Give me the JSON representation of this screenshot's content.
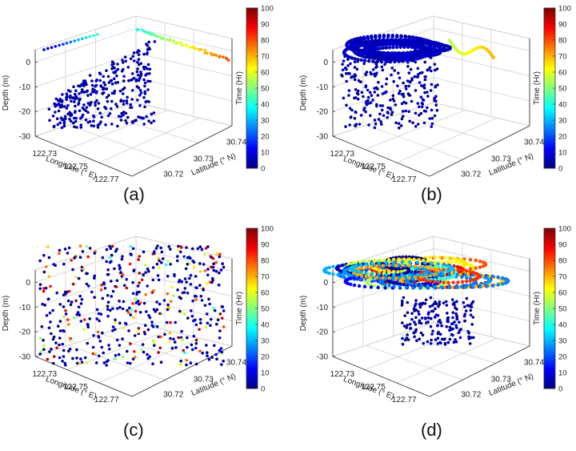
{
  "figure": {
    "panel_labels": [
      "(a)",
      "(b)",
      "(c)",
      "(d)"
    ]
  },
  "chart_data": [
    {
      "panel": "(a)",
      "type": "scatter",
      "pattern": "sparse",
      "axes": {
        "xlabel": "Longitude (° E)",
        "ylabel": "Latitude (° N)",
        "zlabel": "Depth (m)",
        "xticks": [
          "122.73",
          "122.75",
          "122.77"
        ],
        "yticks": [
          "30.72",
          "30.73",
          "30.74"
        ],
        "zticks": [
          "0",
          "-10",
          "-20",
          "-30"
        ],
        "zlim": [
          -30,
          5
        ],
        "grid": true
      },
      "colorbar": {
        "label": "Time (Hr)",
        "ticks": [
          "0",
          "10",
          "20",
          "30",
          "40",
          "50",
          "60",
          "70",
          "80",
          "90",
          "100"
        ],
        "range": [
          0,
          100
        ],
        "colormap": "jet"
      },
      "description_values": {
        "depth_range": [
          -30,
          0
        ],
        "time_range": [
          0,
          100
        ]
      }
    },
    {
      "panel": "(b)",
      "type": "scatter",
      "pattern": "trajectories",
      "axes": {
        "xlabel": "Longitude (° E)",
        "ylabel": "Latitude (° N)",
        "zlabel": "Depth (m)",
        "xticks": [
          "122.73",
          "122.75",
          "122.77"
        ],
        "yticks": [
          "30.72",
          "30.73",
          "30.74"
        ],
        "zticks": [
          "0",
          "-10",
          "-20",
          "-30"
        ],
        "zlim": [
          -30,
          5
        ],
        "grid": true
      },
      "colorbar": {
        "label": "Time (Hr)",
        "ticks": [
          "0",
          "10",
          "20",
          "30",
          "40",
          "50",
          "60",
          "70",
          "80",
          "90",
          "100"
        ],
        "range": [
          0,
          100
        ],
        "colormap": "jet"
      },
      "description_values": {
        "depth_range": [
          -30,
          0
        ],
        "time_range": [
          0,
          100
        ]
      }
    },
    {
      "panel": "(c)",
      "type": "scatter",
      "pattern": "scattered",
      "axes": {
        "xlabel": "Longitude (° E)",
        "ylabel": "Latitude (° N)",
        "zlabel": "Depth (m)",
        "xticks": [
          "122.73",
          "122.75",
          "122.77"
        ],
        "yticks": [
          "30.72",
          "30.73",
          "30.74"
        ],
        "zticks": [
          "0",
          "-10",
          "-20",
          "-30"
        ],
        "zlim": [
          -30,
          5
        ],
        "grid": true
      },
      "colorbar": {
        "label": "Time (Hr)",
        "ticks": [
          "0",
          "10",
          "20",
          "30",
          "40",
          "50",
          "60",
          "70",
          "80",
          "90",
          "100"
        ],
        "range": [
          0,
          100
        ],
        "colormap": "jet"
      },
      "description_values": {
        "depth_range": [
          -30,
          0
        ],
        "time_range": [
          0,
          100
        ]
      }
    },
    {
      "panel": "(d)",
      "type": "scatter",
      "pattern": "dense-trajectories",
      "axes": {
        "xlabel": "Longitude (° E)",
        "ylabel": "Latitude (° N)",
        "zlabel": "Depth (m)",
        "xticks": [
          "122.73",
          "122.75",
          "122.77"
        ],
        "yticks": [
          "30.72",
          "30.73",
          "30.74"
        ],
        "zticks": [
          "0",
          "-10",
          "-20",
          "-30"
        ],
        "zlim": [
          -30,
          5
        ],
        "grid": true
      },
      "colorbar": {
        "label": "Time (Hr)",
        "ticks": [
          "0",
          "10",
          "20",
          "30",
          "40",
          "50",
          "60",
          "70",
          "80",
          "90",
          "100"
        ],
        "range": [
          0,
          100
        ],
        "colormap": "jet"
      },
      "description_values": {
        "depth_range": [
          -30,
          0
        ],
        "time_range": [
          0,
          100
        ]
      }
    }
  ]
}
